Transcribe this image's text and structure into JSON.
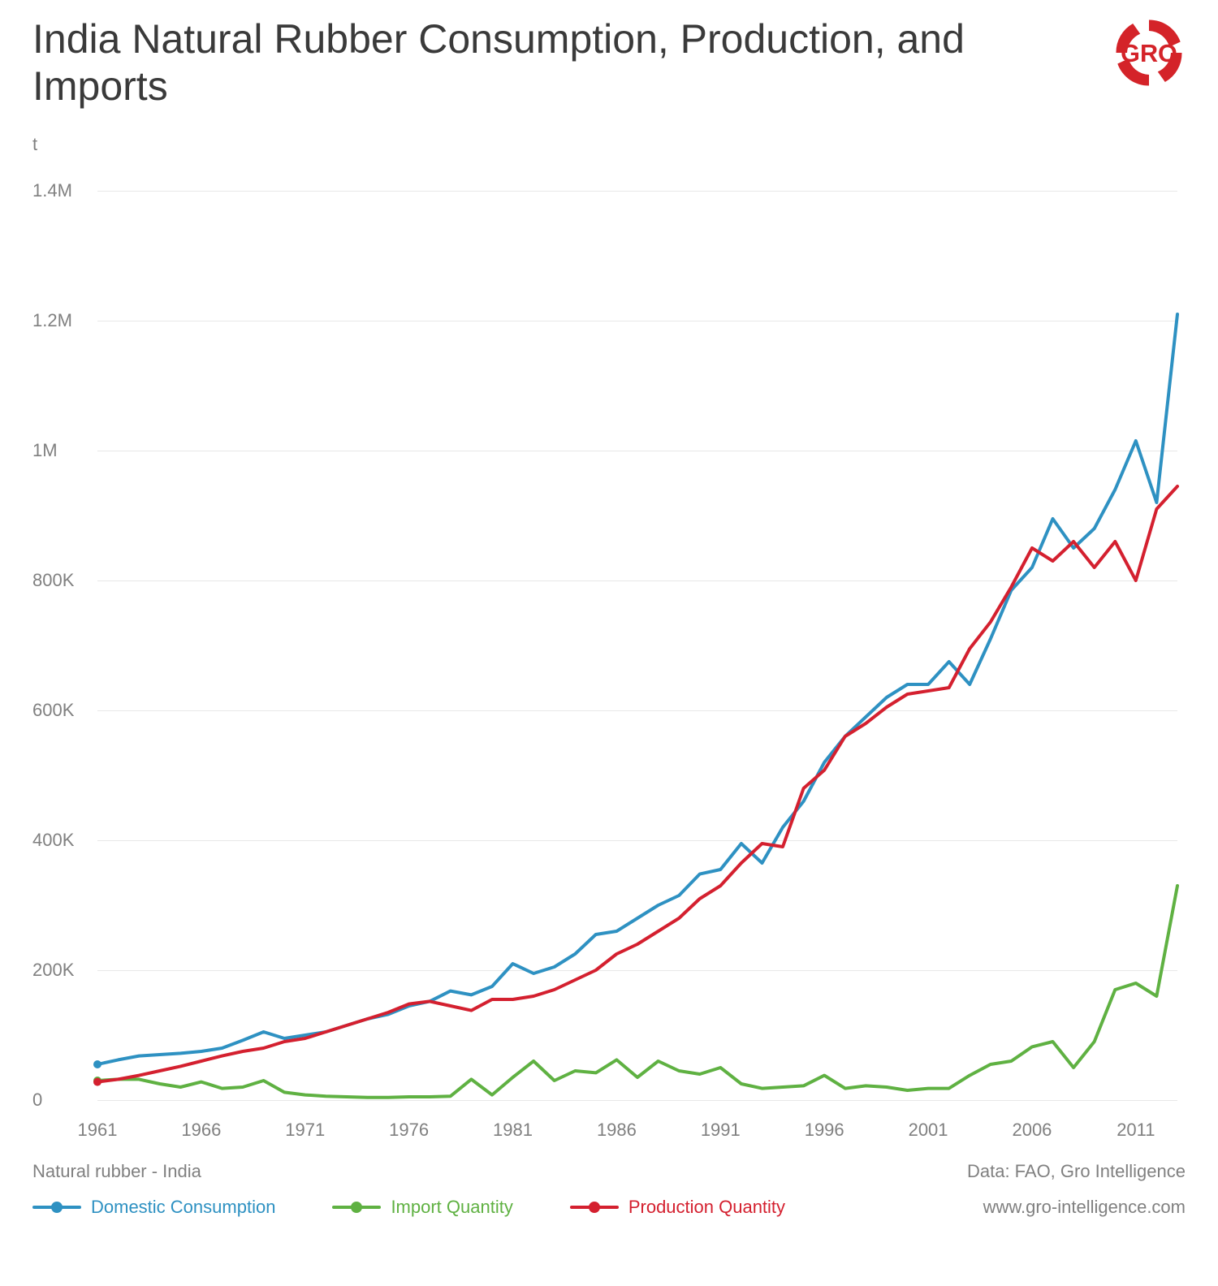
{
  "title": "India Natural Rubber Consumption, Production, and Imports",
  "y_unit": "t",
  "footer_subtitle": "Natural rubber - India",
  "data_source": "Data: FAO, Gro Intelligence",
  "site_url": "www.gro-intelligence.com",
  "colors": {
    "background": "#ffffff",
    "title": "#3a3a3a",
    "axis_label": "#808080",
    "gridline": "#e8e8e8",
    "logo": "#d42329"
  },
  "chart": {
    "type": "line",
    "xlim": [
      1961,
      2013
    ],
    "ylim": [
      0,
      1450000
    ],
    "y_ticks": [
      {
        "value": 0,
        "label": "0"
      },
      {
        "value": 200000,
        "label": "200K"
      },
      {
        "value": 400000,
        "label": "400K"
      },
      {
        "value": 600000,
        "label": "600K"
      },
      {
        "value": 800000,
        "label": "800K"
      },
      {
        "value": 1000000,
        "label": "1M"
      },
      {
        "value": 1200000,
        "label": "1.2M"
      },
      {
        "value": 1400000,
        "label": "1.4M"
      }
    ],
    "x_ticks": [
      {
        "value": 1961,
        "label": "1961"
      },
      {
        "value": 1966,
        "label": "1966"
      },
      {
        "value": 1971,
        "label": "1971"
      },
      {
        "value": 1976,
        "label": "1976"
      },
      {
        "value": 1981,
        "label": "1981"
      },
      {
        "value": 1986,
        "label": "1986"
      },
      {
        "value": 1991,
        "label": "1991"
      },
      {
        "value": 1996,
        "label": "1996"
      },
      {
        "value": 2001,
        "label": "2001"
      },
      {
        "value": 2006,
        "label": "2006"
      },
      {
        "value": 2011,
        "label": "2011"
      }
    ],
    "line_width": 4,
    "marker_radius": 5,
    "series": [
      {
        "id": "consumption",
        "label": "Domestic Consumption",
        "color": "#2e91c2",
        "years": [
          1961,
          1962,
          1963,
          1964,
          1965,
          1966,
          1967,
          1968,
          1969,
          1970,
          1971,
          1972,
          1973,
          1974,
          1975,
          1976,
          1977,
          1978,
          1979,
          1980,
          1981,
          1982,
          1983,
          1984,
          1985,
          1986,
          1987,
          1988,
          1989,
          1990,
          1991,
          1992,
          1993,
          1994,
          1995,
          1996,
          1997,
          1998,
          1999,
          2000,
          2001,
          2002,
          2003,
          2004,
          2005,
          2006,
          2007,
          2008,
          2009,
          2010,
          2011,
          2012,
          2013
        ],
        "values": [
          55000,
          62000,
          68000,
          70000,
          72000,
          75000,
          80000,
          92000,
          105000,
          95000,
          100000,
          105000,
          115000,
          125000,
          132000,
          145000,
          152000,
          168000,
          162000,
          175000,
          210000,
          195000,
          205000,
          225000,
          255000,
          260000,
          280000,
          300000,
          315000,
          348000,
          355000,
          395000,
          365000,
          420000,
          460000,
          520000,
          560000,
          590000,
          620000,
          640000,
          640000,
          675000,
          640000,
          710000,
          785000,
          820000,
          895000,
          850000,
          880000,
          940000,
          1015000,
          920000,
          1210000
        ]
      },
      {
        "id": "imports",
        "label": "Import Quantity",
        "color": "#5fb142",
        "years": [
          1961,
          1962,
          1963,
          1964,
          1965,
          1966,
          1967,
          1968,
          1969,
          1970,
          1971,
          1972,
          1973,
          1974,
          1975,
          1976,
          1977,
          1978,
          1979,
          1980,
          1981,
          1982,
          1983,
          1984,
          1985,
          1986,
          1987,
          1988,
          1989,
          1990,
          1991,
          1992,
          1993,
          1994,
          1995,
          1996,
          1997,
          1998,
          1999,
          2000,
          2001,
          2002,
          2003,
          2004,
          2005,
          2006,
          2007,
          2008,
          2009,
          2010,
          2011,
          2012,
          2013
        ],
        "values": [
          30000,
          32000,
          32000,
          25000,
          20000,
          28000,
          18000,
          20000,
          30000,
          12000,
          8000,
          6000,
          5000,
          4000,
          4000,
          5000,
          5000,
          6000,
          32000,
          8000,
          35000,
          60000,
          30000,
          45000,
          42000,
          62000,
          35000,
          60000,
          45000,
          40000,
          50000,
          25000,
          18000,
          20000,
          22000,
          38000,
          18000,
          22000,
          20000,
          15000,
          18000,
          18000,
          38000,
          55000,
          60000,
          82000,
          90000,
          50000,
          90000,
          170000,
          180000,
          160000,
          330000
        ]
      },
      {
        "id": "production",
        "label": "Production Quantity",
        "color": "#d4202f",
        "years": [
          1961,
          1962,
          1963,
          1964,
          1965,
          1966,
          1967,
          1968,
          1969,
          1970,
          1971,
          1972,
          1973,
          1974,
          1975,
          1976,
          1977,
          1978,
          1979,
          1980,
          1981,
          1982,
          1983,
          1984,
          1985,
          1986,
          1987,
          1988,
          1989,
          1990,
          1991,
          1992,
          1993,
          1994,
          1995,
          1996,
          1997,
          1998,
          1999,
          2000,
          2001,
          2002,
          2003,
          2004,
          2005,
          2006,
          2007,
          2008,
          2009,
          2010,
          2011,
          2012,
          2013
        ],
        "values": [
          28000,
          32000,
          38000,
          45000,
          52000,
          60000,
          68000,
          75000,
          80000,
          90000,
          95000,
          105000,
          115000,
          125000,
          135000,
          148000,
          152000,
          145000,
          138000,
          155000,
          155000,
          160000,
          170000,
          185000,
          200000,
          225000,
          240000,
          260000,
          280000,
          310000,
          330000,
          365000,
          395000,
          390000,
          480000,
          508000,
          560000,
          580000,
          605000,
          625000,
          630000,
          635000,
          695000,
          736000,
          790000,
          850000,
          830000,
          860000,
          820000,
          860000,
          800000,
          910000,
          945000
        ]
      }
    ]
  }
}
